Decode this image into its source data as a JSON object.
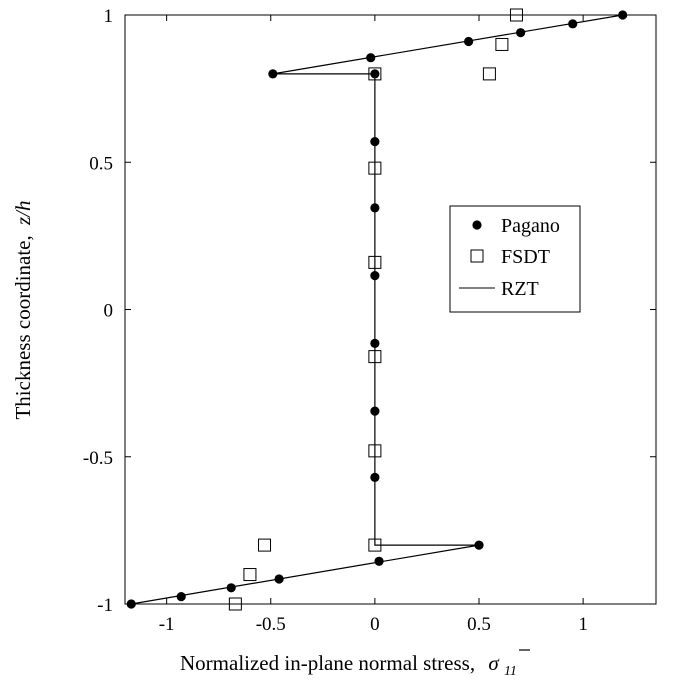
{
  "chart_data": {
    "type": "scatter",
    "title": "",
    "xlabel": "Normalized in-plane normal stress,",
    "xlabel_symbol": "σ",
    "xlabel_subscript": "11",
    "ylabel_main": "Thickness coordinate,",
    "ylabel_var": "z/h",
    "xlim": [
      -1.2,
      1.35
    ],
    "ylim": [
      -1,
      1
    ],
    "xticks": [
      {
        "value": -1,
        "label": "-1"
      },
      {
        "value": -0.5,
        "label": "-0.5"
      },
      {
        "value": 0,
        "label": "0"
      },
      {
        "value": 0.5,
        "label": "0.5"
      },
      {
        "value": 1,
        "label": "1"
      }
    ],
    "yticks": [
      {
        "value": -1,
        "label": "-1"
      },
      {
        "value": -0.5,
        "label": "-0.5"
      },
      {
        "value": 0,
        "label": "0"
      },
      {
        "value": 0.5,
        "label": "0.5"
      },
      {
        "value": 1,
        "label": "1"
      }
    ],
    "grid": false,
    "legend_position": "center-right",
    "series": [
      {
        "name": "Pagano",
        "marker": "filled-circle",
        "color": "#000000",
        "points": [
          {
            "x": -1.17,
            "y": -1.0
          },
          {
            "x": -0.93,
            "y": -0.975
          },
          {
            "x": -0.69,
            "y": -0.945
          },
          {
            "x": -0.46,
            "y": -0.915
          },
          {
            "x": 0.02,
            "y": -0.855
          },
          {
            "x": 0.5,
            "y": -0.8
          },
          {
            "x": 0.0,
            "y": -0.57
          },
          {
            "x": 0.0,
            "y": -0.345
          },
          {
            "x": 0.0,
            "y": -0.115
          },
          {
            "x": 0.0,
            "y": 0.115
          },
          {
            "x": 0.0,
            "y": 0.345
          },
          {
            "x": 0.0,
            "y": 0.57
          },
          {
            "x": 0.0,
            "y": 0.8
          },
          {
            "x": -0.49,
            "y": 0.8
          },
          {
            "x": -0.02,
            "y": 0.855
          },
          {
            "x": 0.45,
            "y": 0.91
          },
          {
            "x": 0.7,
            "y": 0.94
          },
          {
            "x": 0.95,
            "y": 0.97
          },
          {
            "x": 1.19,
            "y": 1.0
          }
        ]
      },
      {
        "name": "FSDT",
        "marker": "open-square",
        "color": "#000000",
        "points": [
          {
            "x": -0.67,
            "y": -1.0
          },
          {
            "x": -0.6,
            "y": -0.9
          },
          {
            "x": -0.53,
            "y": -0.8
          },
          {
            "x": 0.0,
            "y": -0.8
          },
          {
            "x": 0.0,
            "y": -0.48
          },
          {
            "x": 0.0,
            "y": -0.16
          },
          {
            "x": 0.0,
            "y": 0.16
          },
          {
            "x": 0.0,
            "y": 0.48
          },
          {
            "x": 0.0,
            "y": 0.8
          },
          {
            "x": 0.55,
            "y": 0.8
          },
          {
            "x": 0.61,
            "y": 0.9
          },
          {
            "x": 0.68,
            "y": 1.0
          }
        ]
      },
      {
        "name": "RZT",
        "marker": "line",
        "color": "#000000",
        "points": [
          {
            "x": -1.17,
            "y": -1.0
          },
          {
            "x": 0.5,
            "y": -0.8
          },
          {
            "x": 0.0,
            "y": -0.8
          },
          {
            "x": 0.0,
            "y": 0.8
          },
          {
            "x": -0.49,
            "y": 0.8
          },
          {
            "x": 1.19,
            "y": 1.0
          }
        ]
      }
    ]
  }
}
